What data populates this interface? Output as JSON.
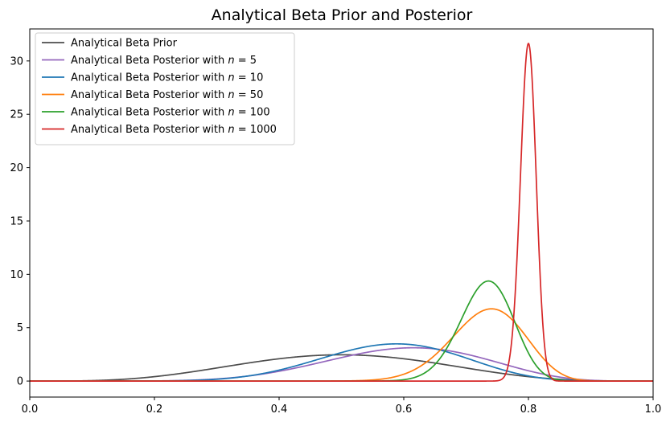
{
  "chart_data": {
    "type": "line",
    "title": "Analytical Beta Prior and Posterior",
    "xlabel": "",
    "ylabel": "",
    "xlim": [
      0.0,
      1.0
    ],
    "ylim": [
      -1.5,
      33.0
    ],
    "xticks": [
      0.0,
      0.2,
      0.4,
      0.6,
      0.8,
      1.0
    ],
    "xtick_labels": [
      "0.0",
      "0.2",
      "0.4",
      "0.6",
      "0.8",
      "1.0"
    ],
    "yticks": [
      0,
      5,
      10,
      15,
      20,
      25,
      30
    ],
    "ytick_labels": [
      "0",
      "5",
      "10",
      "15",
      "20",
      "25",
      "30"
    ],
    "grid": false,
    "legend_position": "top-left",
    "legend_label_prefix": "Analytical Beta Posterior with ",
    "series": [
      {
        "name": "Analytical Beta Prior",
        "label_prefix": "Analytical Beta Prior",
        "label_n": "",
        "alpha": 5,
        "beta": 5,
        "color": "#4d4d4d"
      },
      {
        "name": "Analytical Beta Posterior with n = 5",
        "label_prefix": "Analytical Beta Posterior with ",
        "label_n": "5",
        "alpha": 9,
        "beta": 6,
        "color": "#9467bd"
      },
      {
        "name": "Analytical Beta Posterior with n = 10",
        "label_prefix": "Analytical Beta Posterior with ",
        "label_n": "10",
        "alpha": 11,
        "beta": 8,
        "color": "#1f77b4"
      },
      {
        "name": "Analytical Beta Posterior with n = 50",
        "label_prefix": "Analytical Beta Posterior with ",
        "label_n": "50",
        "alpha": 41,
        "beta": 15,
        "color": "#ff7f0e"
      },
      {
        "name": "Analytical Beta Posterior with n = 100",
        "label_prefix": "Analytical Beta Posterior with ",
        "label_n": "100",
        "alpha": 79,
        "beta": 29,
        "color": "#2ca02c"
      },
      {
        "name": "Analytical Beta Posterior with n = 1000",
        "label_prefix": "Analytical Beta Posterior with ",
        "label_n": "1000",
        "alpha": 805,
        "beta": 202,
        "color": "#d62728"
      }
    ]
  }
}
